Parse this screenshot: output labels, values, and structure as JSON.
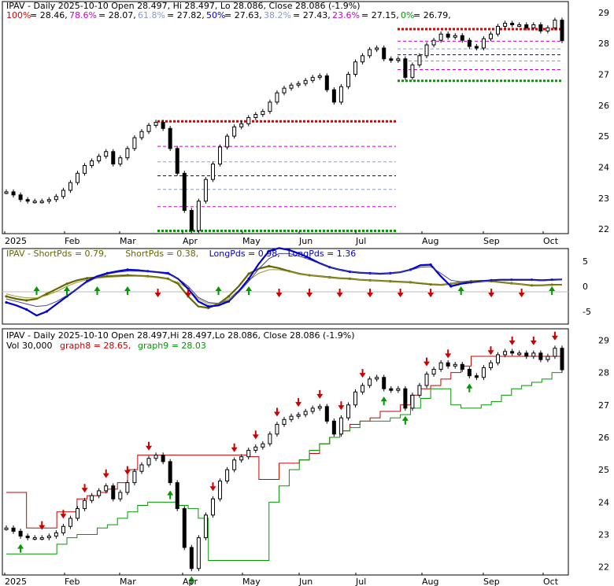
{
  "ticker": "IPAV",
  "chart_data": [
    {
      "type": "line",
      "panel": "price-fibonacci",
      "title": "IPAV - Daily 2025-10-10 Open 28.497, Hi 28.497, Lo 28.086, Close 28.086 (-1.9%)",
      "xlabel": "",
      "ylabel": "",
      "x_ticks": [
        "2025",
        "Feb",
        "Mar",
        "Apr",
        "May",
        "Jun",
        "Jul",
        "Aug",
        "Sep",
        "Oct"
      ],
      "y_ticks": [
        22,
        23,
        24,
        25,
        26,
        27,
        28,
        29
      ],
      "ylim": [
        21.85,
        29.35
      ],
      "grid": false,
      "fib_levels": [
        {
          "label": "100%",
          "value": 28.46,
          "color": "#dd0000"
        },
        {
          "label": "78.6%",
          "value": 28.07,
          "color": "#cc00cc"
        },
        {
          "label": "61.8%",
          "value": 27.82,
          "color": "#8899cc"
        },
        {
          "label": "50%",
          "value": 27.63,
          "color": "#0000cc"
        },
        {
          "label": "38.2%",
          "value": 27.43,
          "color": "#8899cc"
        },
        {
          "label": "23.6%",
          "value": 27.15,
          "color": "#cc00cc"
        },
        {
          "label": "0%",
          "value": 26.79,
          "color": "#009900"
        }
      ],
      "fib_levels_earlier": [
        {
          "label": "100%",
          "value": 25.48
        },
        {
          "label": "78.6%",
          "value": 24.67
        },
        {
          "label": "61.8%",
          "value": 24.17
        },
        {
          "label": "50%",
          "value": 23.72
        },
        {
          "label": "38.2%",
          "value": 23.28
        },
        {
          "label": "23.6%",
          "value": 22.72
        },
        {
          "label": "0%",
          "value": 21.94
        }
      ],
      "fib_earlier_range_months": [
        "Mar",
        "Jul"
      ],
      "series": [
        {
          "values": [
            23.2,
            23.1,
            22.95,
            22.9,
            22.9,
            22.9,
            22.95,
            23.05,
            23.25,
            23.5,
            23.8,
            24.05,
            24.2,
            24.35,
            24.5,
            24.1,
            24.3,
            24.6,
            24.95,
            25.15,
            25.35,
            25.45,
            25.25,
            24.6,
            23.8,
            22.6,
            21.95,
            22.9,
            23.6,
            24.1,
            24.65,
            25.0,
            25.3,
            25.4,
            25.6,
            25.7,
            25.8,
            26.1,
            26.4,
            26.55,
            26.65,
            26.7,
            26.8,
            26.9,
            26.95,
            26.5,
            26.1,
            26.6,
            27.0,
            27.4,
            27.6,
            27.8,
            27.85,
            27.5,
            27.45,
            27.5,
            26.9,
            27.3,
            27.6,
            27.95,
            28.1,
            28.3,
            28.2,
            28.25,
            28.1,
            27.9,
            27.85,
            28.15,
            28.3,
            28.55,
            28.65,
            28.6,
            28.6,
            28.5,
            28.6,
            28.4,
            28.5,
            28.75,
            28.086
          ]
        }
      ]
    },
    {
      "type": "line",
      "panel": "oscillator",
      "legend": [
        {
          "label": "IPAV - ShortPds = 0.79,",
          "color": "#666600"
        },
        {
          "label": "ShortPds = 0.38,",
          "color": "#666600"
        },
        {
          "label": "LongPds = 0.98,",
          "color": "#0000cc"
        },
        {
          "label": "LongPds = 1.36",
          "color": "#0000cc"
        }
      ],
      "y_ticks": [
        5,
        0,
        -5
      ],
      "ylim": [
        -7.5,
        7.5
      ],
      "series": [
        {
          "name": "ShortPds",
          "color": "#666600",
          "values": [
            -2,
            -2.5,
            -2.8,
            -2.5,
            -1.5,
            -0.5,
            0.5,
            1.2,
            1.6,
            1.8,
            2.0,
            2.1,
            2.2,
            2.1,
            2.0,
            1.8,
            1.5,
            0.5,
            -2,
            -4,
            -4.3,
            -3.5,
            -2,
            0,
            2.5,
            3.5,
            4.0,
            3.6,
            3.0,
            2.5,
            2.2,
            2.0,
            1.8,
            1.6,
            1.5,
            1.3,
            1.2,
            1.1,
            1.0,
            0.9,
            0.8,
            0.6,
            0.4,
            0.3,
            0.5,
            0.8,
            1.0,
            1.1,
            1.0,
            0.8,
            0.6,
            0.4,
            0.2,
            0.2,
            0.3,
            0.3
          ]
        },
        {
          "name": "ShortPds",
          "color": "#999933",
          "values": [
            -1.5,
            -2,
            -2.3,
            -2.3,
            -1.8,
            -1,
            0,
            0.8,
            1.3,
            1.6,
            1.8,
            1.9,
            2.0,
            2.0,
            1.9,
            1.7,
            1.4,
            0.8,
            -0.5,
            -2.5,
            -3.5,
            -3.5,
            -2.5,
            -0.8,
            1.2,
            2.6,
            3.3,
            3.3,
            2.9,
            2.5,
            2.2,
            2.0,
            1.8,
            1.6,
            1.4,
            1.3,
            1.2,
            1.1,
            1.0,
            0.9,
            0.8,
            0.7,
            0.5,
            0.4,
            0.5,
            0.7,
            0.9,
            1.0,
            0.9,
            0.8,
            0.6,
            0.4,
            0.3,
            0.2,
            0.2,
            0.3
          ]
        },
        {
          "name": "LongPds",
          "color": "#0000cc",
          "values": [
            -3.2,
            -3.8,
            -4.6,
            -5.8,
            -5.0,
            -3.5,
            -2,
            -0.5,
            1.0,
            2.0,
            2.6,
            3.0,
            3.3,
            3.2,
            3.0,
            2.8,
            2.6,
            1.5,
            -0.5,
            -3,
            -4.0,
            -3.8,
            -3.0,
            -1.0,
            1.5,
            4.5,
            7.0,
            7.6,
            7.2,
            6.5,
            5.6,
            4.6,
            3.8,
            3.3,
            2.9,
            2.7,
            2.6,
            2.5,
            2.6,
            2.8,
            3.3,
            4.2,
            4.3,
            2.0,
            0,
            0.5,
            0.8,
            1.0,
            1.2,
            1.3,
            1.3,
            1.3,
            1.3,
            1.2,
            1.3,
            1.36
          ]
        },
        {
          "name": "LongPds",
          "color": "#444488",
          "values": [
            -2.5,
            -3.0,
            -3.5,
            -4.0,
            -3.8,
            -3.0,
            -1.8,
            -0.5,
            0.8,
            1.8,
            2.4,
            2.8,
            3.0,
            3.0,
            2.9,
            2.7,
            2.4,
            1.6,
            0,
            -2.2,
            -3.2,
            -3.4,
            -2.8,
            -1.2,
            1.0,
            3.5,
            5.5,
            6.5,
            6.5,
            6.0,
            5.3,
            4.5,
            3.8,
            3.3,
            2.9,
            2.7,
            2.6,
            2.5,
            2.6,
            2.8,
            3.2,
            3.8,
            3.9,
            2.6,
            1.2,
            0.9,
            0.9,
            1.0,
            1.1,
            1.2,
            1.2,
            1.2,
            1.2,
            1.1,
            1.2,
            1.3
          ]
        }
      ]
    },
    {
      "type": "line",
      "panel": "price-bands",
      "title": "IPAV - Daily 2025-10-10 Open 28.497,Hi 28.497,Lo 28.086, Close 28.086 (-1.9%)",
      "legend": [
        {
          "label": "Vol 30,000",
          "color": "#000000"
        },
        {
          "label": "graph8 = 28.65,",
          "color": "#cc0000"
        },
        {
          "label": "graph9 = 28.03",
          "color": "#009900"
        }
      ],
      "x_ticks": [
        "2025",
        "Feb",
        "Mar",
        "Apr",
        "May",
        "Jun",
        "Jul",
        "Aug",
        "Sep",
        "Oct"
      ],
      "y_ticks": [
        22,
        23,
        24,
        25,
        26,
        27,
        28,
        29
      ],
      "ylim": [
        21.75,
        29.35
      ],
      "series": [
        {
          "name": "graph8",
          "color": "#cc0000",
          "values": [
            24.3,
            24.3,
            23.2,
            23.2,
            23.2,
            23.7,
            23.7,
            24.1,
            24.2,
            24.3,
            24.4,
            24.6,
            25.0,
            25.45,
            25.45,
            25.45,
            25.45,
            25.45,
            25.45,
            25.45,
            25.45,
            25.45,
            25.45,
            25.45,
            25.4,
            24.7,
            24.7,
            25.2,
            25.2,
            25.3,
            25.5,
            25.8,
            26.0,
            26.2,
            26.4,
            26.5,
            26.6,
            26.8,
            26.8,
            27.0,
            27.3,
            27.5,
            27.6,
            27.8,
            28.0,
            28.2,
            28.5,
            28.5,
            28.5,
            28.5,
            28.5,
            28.5,
            28.5,
            28.5,
            28.5,
            28.65
          ]
        },
        {
          "name": "graph9",
          "color": "#009900",
          "values": [
            22.4,
            22.4,
            22.4,
            22.4,
            22.4,
            22.7,
            22.9,
            23.0,
            23.0,
            23.2,
            23.3,
            23.5,
            23.7,
            23.9,
            24.0,
            24.0,
            24.0,
            23.9,
            23.8,
            23.5,
            22.2,
            22.2,
            22.2,
            22.2,
            22.2,
            22.2,
            24.0,
            24.5,
            25.0,
            25.3,
            25.6,
            25.8,
            26.0,
            26.2,
            26.3,
            26.5,
            26.5,
            26.5,
            26.6,
            26.7,
            26.9,
            27.2,
            27.5,
            27.5,
            27.0,
            26.9,
            26.9,
            27.0,
            27.1,
            27.3,
            27.5,
            27.6,
            27.7,
            27.8,
            28.0,
            28.03
          ]
        },
        {
          "name": "price",
          "color": "#000000",
          "values": [
            23.2,
            23.1,
            22.95,
            22.9,
            22.9,
            22.9,
            22.95,
            23.05,
            23.25,
            23.5,
            23.8,
            24.05,
            24.2,
            24.35,
            24.5,
            24.1,
            24.3,
            24.6,
            24.95,
            25.15,
            25.35,
            25.45,
            25.25,
            24.6,
            23.8,
            22.6,
            21.95,
            22.9,
            23.6,
            24.1,
            24.65,
            25.0,
            25.3,
            25.4,
            25.6,
            25.7,
            25.8,
            26.1,
            26.4,
            26.55,
            26.65,
            26.7,
            26.8,
            26.9,
            26.95,
            26.5,
            26.1,
            26.6,
            27.0,
            27.4,
            27.6,
            27.8,
            27.85,
            27.5,
            27.45,
            27.5,
            26.9,
            27.3,
            27.6,
            27.95,
            28.1,
            28.3,
            28.2,
            28.25,
            28.1,
            27.9,
            27.85,
            28.15,
            28.3,
            28.55,
            28.65,
            28.6,
            28.6,
            28.5,
            28.6,
            28.4,
            28.5,
            28.75,
            28.086
          ]
        }
      ]
    }
  ]
}
